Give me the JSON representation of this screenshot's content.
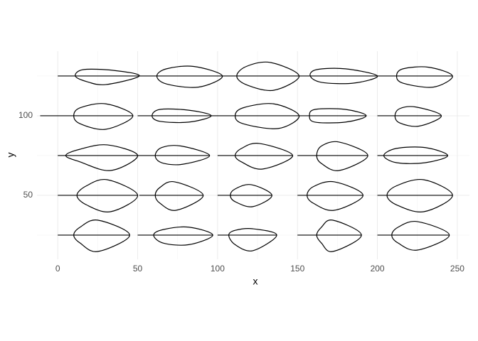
{
  "chart_data": {
    "type": "path",
    "xlabel": "x",
    "ylabel": "y",
    "xlim": [
      -13,
      257.6
    ],
    "ylim": [
      9.8,
      140.6
    ],
    "xticks": [
      0,
      50,
      100,
      150,
      200,
      250
    ],
    "yticks": [
      50,
      100
    ],
    "xminor": [
      25,
      75,
      125,
      175,
      225
    ],
    "yminor": [
      25,
      75,
      125
    ],
    "grid": true,
    "color": "#000000",
    "leaves": [
      {
        "x": [
          11,
          16,
          35,
          51,
          30,
          18
        ],
        "y": [
          125,
          129,
          128.5,
          125,
          119.6,
          121.5
        ],
        "stem_x": [
          0,
          51
        ],
        "stem_y": [
          125,
          125
        ]
      },
      {
        "x": [
          62,
          68,
          85,
          103,
          88,
          68
        ],
        "y": [
          125,
          129.5,
          131,
          125,
          118,
          120
        ],
        "stem_x": [
          51,
          103
        ],
        "stem_y": [
          125,
          125
        ]
      },
      {
        "x": [
          112,
          118,
          133,
          151,
          135,
          118
        ],
        "y": [
          125,
          131,
          133.5,
          125,
          116,
          119.5
        ],
        "stem_x": [
          103,
          151
        ],
        "stem_y": [
          125,
          125
        ]
      },
      {
        "x": [
          158,
          162,
          180,
          200,
          185,
          165
        ],
        "y": [
          125,
          129,
          129.5,
          125,
          120.5,
          121
        ],
        "stem_x": [
          151,
          200
        ],
        "stem_y": [
          125,
          125
        ]
      },
      {
        "x": [
          212,
          216,
          232,
          247,
          235,
          216
        ],
        "y": [
          125,
          129.5,
          130.5,
          125,
          118,
          120.5
        ],
        "stem_x": [
          200,
          247
        ],
        "stem_y": [
          125,
          125
        ]
      },
      {
        "x": [
          10,
          14,
          30,
          47,
          30,
          14
        ],
        "y": [
          100,
          105,
          107.5,
          100,
          91.5,
          95
        ],
        "stem_x": [
          -11,
          47
        ],
        "stem_y": [
          100,
          100
        ]
      },
      {
        "x": [
          59,
          64,
          82,
          96,
          82,
          64
        ],
        "y": [
          100,
          104,
          103.5,
          100,
          96,
          96.5
        ],
        "stem_x": [
          50,
          96
        ],
        "stem_y": [
          100,
          100
        ]
      },
      {
        "x": [
          111,
          116,
          135,
          151,
          138,
          116
        ],
        "y": [
          100,
          105,
          107.5,
          100,
          92,
          95
        ],
        "stem_x": [
          96,
          151
        ],
        "stem_y": [
          100,
          100
        ]
      },
      {
        "x": [
          157.5,
          161,
          180,
          193,
          180,
          161
        ],
        "y": [
          100,
          104,
          104,
          100,
          96,
          96
        ],
        "stem_x": [
          151,
          193
        ],
        "stem_y": [
          100,
          100
        ]
      },
      {
        "x": [
          211,
          214,
          224,
          240,
          226,
          214
        ],
        "y": [
          100,
          104.5,
          105.5,
          100,
          93.5,
          95.5
        ],
        "stem_x": [
          200,
          240
        ],
        "stem_y": [
          100,
          100
        ]
      },
      {
        "x": [
          5,
          14,
          31,
          50,
          33,
          14
        ],
        "y": [
          75,
          79,
          81.7,
          75,
          65.6,
          71
        ],
        "stem_x": [
          0,
          50
        ],
        "stem_y": [
          75,
          75
        ]
      },
      {
        "x": [
          61,
          65,
          77,
          95,
          78,
          65
        ],
        "y": [
          75,
          80,
          81,
          75,
          69.5,
          70.5
        ],
        "stem_x": [
          50,
          95
        ],
        "stem_y": [
          75,
          75
        ]
      },
      {
        "x": [
          111,
          115,
          126,
          147,
          128,
          115
        ],
        "y": [
          75,
          79.5,
          82.6,
          75,
          66.5,
          71
        ],
        "stem_x": [
          100,
          147
        ],
        "stem_y": [
          75,
          75
        ]
      },
      {
        "x": [
          162,
          165,
          176,
          194,
          176,
          165
        ],
        "y": [
          75,
          81,
          83.5,
          75,
          65.6,
          70
        ],
        "stem_x": [
          150,
          194
        ],
        "stem_y": [
          75,
          75
        ]
      },
      {
        "x": [
          204,
          212,
          230,
          244,
          230,
          212
        ],
        "y": [
          75,
          79.5,
          80,
          75,
          70.5,
          70.5
        ],
        "stem_x": [
          200,
          244
        ],
        "stem_y": [
          75,
          75
        ]
      },
      {
        "x": [
          12,
          18,
          31,
          50,
          33,
          18
        ],
        "y": [
          50,
          56,
          59.8,
          50,
          39.7,
          44
        ],
        "stem_x": [
          0,
          50
        ],
        "stem_y": [
          50,
          50
        ]
      },
      {
        "x": [
          61,
          64,
          73,
          91,
          74,
          64
        ],
        "y": [
          50,
          55,
          58.5,
          50,
          40.6,
          45
        ],
        "stem_x": [
          51,
          91
        ],
        "stem_y": [
          50,
          50
        ]
      },
      {
        "x": [
          108,
          111,
          121,
          134,
          122,
          111
        ],
        "y": [
          50,
          54,
          56.7,
          50,
          42.9,
          46
        ],
        "stem_x": [
          100,
          134
        ],
        "stem_y": [
          50,
          50
        ]
      },
      {
        "x": [
          156,
          160,
          173,
          191,
          173,
          160
        ],
        "y": [
          50,
          55.5,
          58.5,
          50,
          40.6,
          45
        ],
        "stem_x": [
          150,
          191
        ],
        "stem_y": [
          50,
          50
        ]
      },
      {
        "x": [
          206,
          212,
          229,
          247,
          229,
          212
        ],
        "y": [
          50,
          56,
          59.8,
          50,
          39.7,
          44
        ],
        "stem_x": [
          200,
          247
        ],
        "stem_y": [
          50,
          50
        ]
      },
      {
        "x": [
          10,
          14,
          25,
          45,
          25,
          14
        ],
        "y": [
          25,
          30,
          34.4,
          25,
          14.7,
          20
        ],
        "stem_x": [
          0,
          45
        ],
        "stem_y": [
          25,
          25
        ]
      },
      {
        "x": [
          60,
          66,
          82,
          97,
          82,
          66
        ],
        "y": [
          25,
          28.5,
          30,
          25,
          19,
          20
        ],
        "stem_x": [
          50,
          97
        ],
        "stem_y": [
          25,
          25
        ]
      },
      {
        "x": [
          107,
          111,
          122,
          137,
          122,
          111
        ],
        "y": [
          25,
          28,
          29,
          25,
          15.2,
          19
        ],
        "stem_x": [
          100,
          137
        ],
        "stem_y": [
          25,
          25
        ]
      },
      {
        "x": [
          162,
          165,
          172,
          190,
          172,
          165
        ],
        "y": [
          25,
          30,
          34.4,
          25,
          14.7,
          20
        ],
        "stem_x": [
          150,
          190
        ],
        "stem_y": [
          25,
          25
        ]
      },
      {
        "x": [
          209,
          213,
          225,
          245,
          225,
          213
        ],
        "y": [
          25,
          30,
          33.5,
          25,
          15.6,
          20
        ],
        "stem_x": [
          200,
          245
        ],
        "stem_y": [
          25,
          25
        ]
      }
    ]
  }
}
